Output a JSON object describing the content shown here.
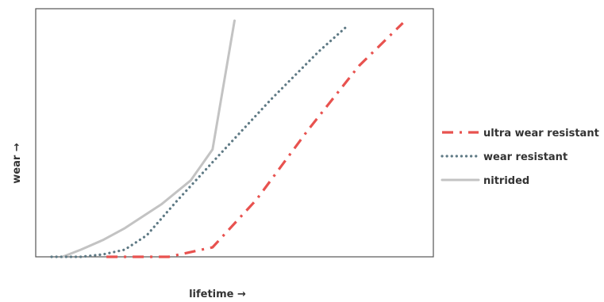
{
  "chart_data": {
    "type": "line",
    "title": "",
    "xlabel": "lifetime →",
    "ylabel": "wear →",
    "xlim": [
      0,
      100
    ],
    "ylim": [
      0,
      100
    ],
    "grid": false,
    "legend_position": "right",
    "series": [
      {
        "name": "ultra wear resistant",
        "style": "dash-dot",
        "color": "#e8524f",
        "x": [
          15,
          26,
          32,
          44,
          56,
          70,
          84,
          96
        ],
        "y": [
          0,
          0,
          0,
          4,
          24,
          53,
          80,
          98
        ]
      },
      {
        "name": "wear resistant",
        "style": "dotted",
        "color": "#5f7a85",
        "x": [
          0,
          8,
          14,
          20,
          26,
          34,
          46,
          60,
          73,
          81
        ],
        "y": [
          0,
          0,
          1,
          3,
          9,
          23,
          43,
          66,
          86,
          97
        ]
      },
      {
        "name": "nitrided",
        "style": "solid",
        "color": "#c3c3c3",
        "x": [
          3,
          8,
          14,
          20,
          30,
          38,
          44,
          50
        ],
        "y": [
          0,
          3,
          7,
          12,
          22,
          32,
          45,
          99
        ]
      }
    ]
  }
}
